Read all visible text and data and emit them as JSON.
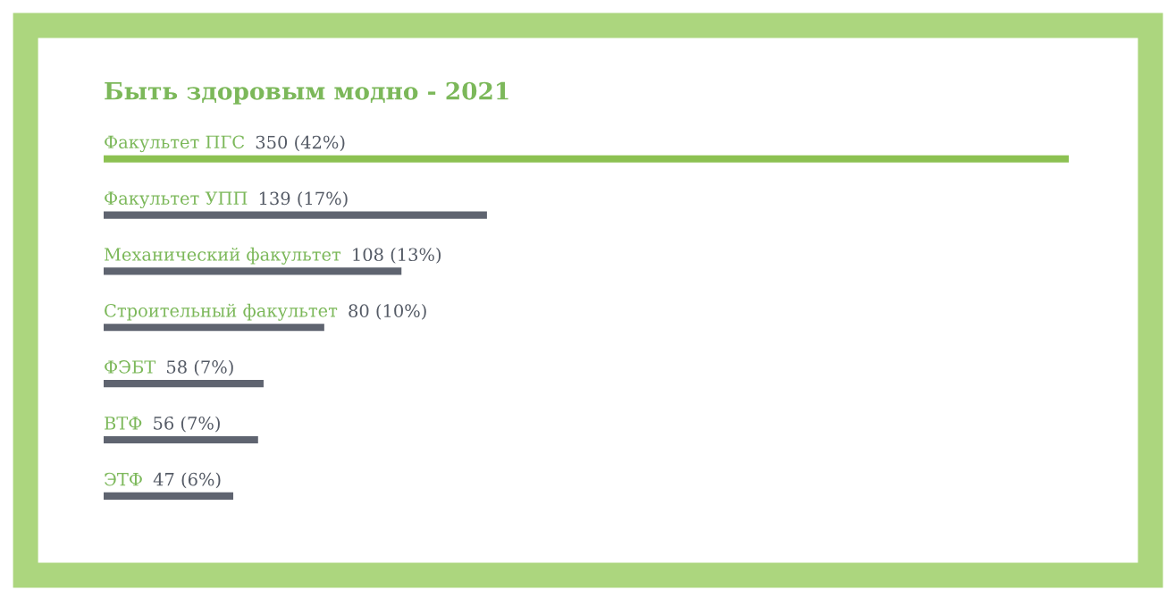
{
  "chart_data": {
    "type": "bar",
    "orientation": "horizontal",
    "title": "Быть здоровым модно - 2021",
    "categories": [
      "Факультет ПГС",
      "Факультет УПП",
      "Механический факультет",
      "Строительный факультет",
      "ФЭБТ",
      "ВТФ",
      "ЭТФ"
    ],
    "values": [
      350,
      139,
      108,
      80,
      58,
      56,
      47
    ],
    "value_labels": [
      "350 (42%)",
      "139 (17%)",
      "108 (13%)",
      "80 (10%)",
      "58 (7%)",
      "56 (7%)",
      "47 (6%)"
    ],
    "colors": [
      "#8cc152",
      "#5f6470",
      "#5f6470",
      "#5f6470",
      "#5f6470",
      "#5f6470",
      "#5f6470"
    ],
    "legend": false
  }
}
